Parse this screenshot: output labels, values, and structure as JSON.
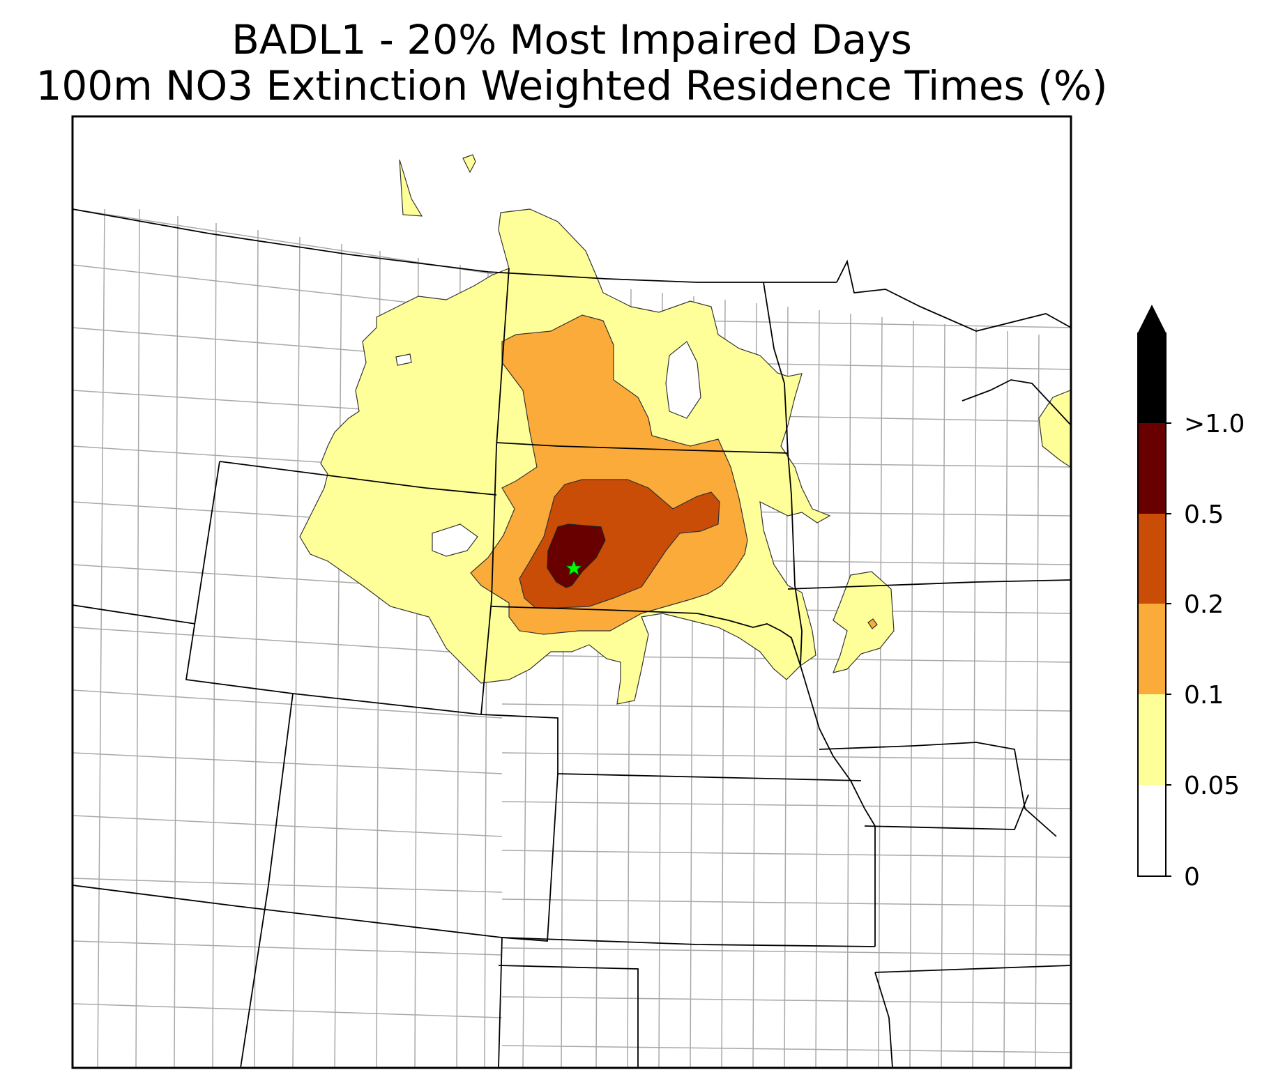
{
  "title": {
    "line1": "BADL1 - 20% Most Impaired Days",
    "line2": "100m NO3 Extinction Weighted Residence Times (%)"
  },
  "colorbar": {
    "levels": [
      {
        "label": "0",
        "color": "#ffffff"
      },
      {
        "label": "0.05",
        "color": "#ffff99"
      },
      {
        "label": "0.1",
        "color": "#fbab3a"
      },
      {
        "label": "0.2",
        "color": "#c94d07"
      },
      {
        "label": "0.5",
        "color": "#680000"
      },
      {
        "label": ">1.0",
        "color": "#000000"
      }
    ],
    "extend": "max"
  },
  "map": {
    "site_marker_color": "#00ff00",
    "state_line_color": "#000000",
    "county_line_color": "#a8a8a8"
  }
}
